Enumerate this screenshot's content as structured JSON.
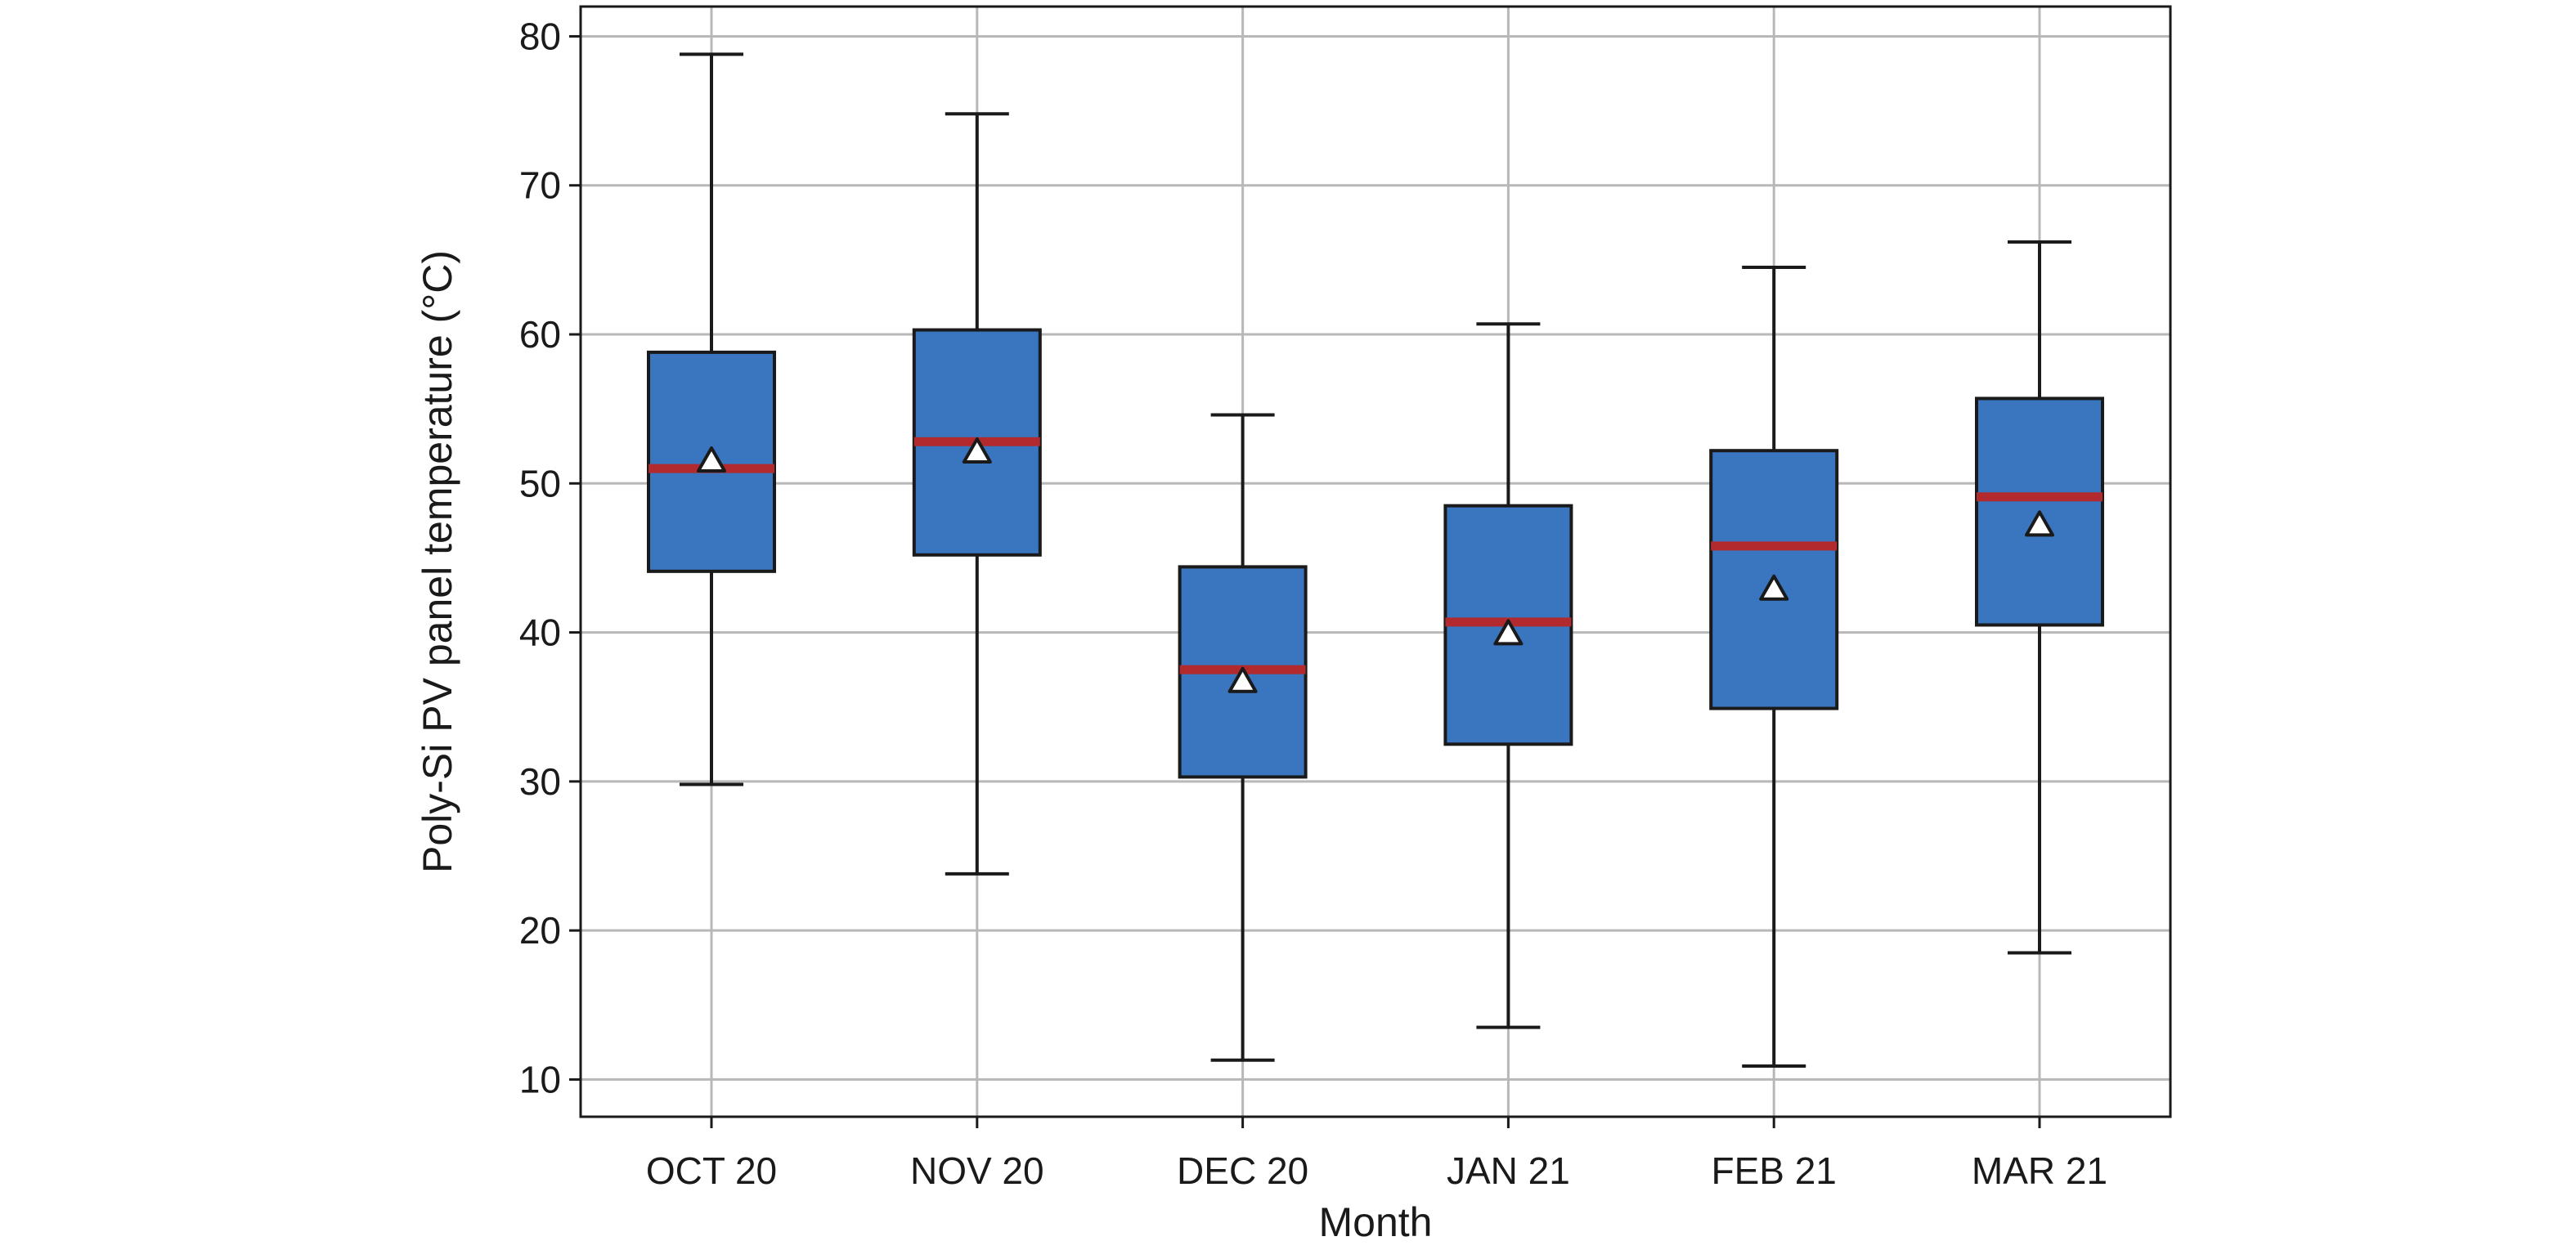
{
  "chart_data": {
    "type": "box",
    "title": "",
    "xlabel": "Month",
    "ylabel": "Poly-Si PV panel temperature (°C)",
    "ylim": [
      7.5,
      82
    ],
    "yticks": [
      10,
      20,
      30,
      40,
      50,
      60,
      70,
      80
    ],
    "grid": true,
    "categories": [
      "OCT 20",
      "NOV 20",
      "DEC 20",
      "JAN 21",
      "FEB 21",
      "MAR 21"
    ],
    "boxes": [
      {
        "category": "OCT 20",
        "whisker_low": 29.8,
        "q1": 44.1,
        "median": 51.0,
        "mean": 51.5,
        "q3": 58.8,
        "whisker_high": 78.8
      },
      {
        "category": "NOV 20",
        "whisker_low": 23.8,
        "q1": 45.2,
        "median": 52.8,
        "mean": 52.1,
        "q3": 60.3,
        "whisker_high": 74.8
      },
      {
        "category": "DEC 20",
        "whisker_low": 11.3,
        "q1": 30.3,
        "median": 37.5,
        "mean": 36.7,
        "q3": 44.4,
        "whisker_high": 54.6
      },
      {
        "category": "JAN 21",
        "whisker_low": 13.5,
        "q1": 32.5,
        "median": 40.7,
        "mean": 39.9,
        "q3": 48.5,
        "whisker_high": 60.7
      },
      {
        "category": "FEB 21",
        "whisker_low": 10.9,
        "q1": 34.9,
        "median": 45.8,
        "mean": 42.9,
        "q3": 52.2,
        "whisker_high": 64.5
      },
      {
        "category": "MAR 21",
        "whisker_low": 18.5,
        "q1": 40.5,
        "median": 49.1,
        "mean": 47.2,
        "q3": 55.7,
        "whisker_high": 66.2
      }
    ],
    "colors": {
      "box_fill": "#3a75bf",
      "box_edge": "#1a1a1a",
      "median": "#b22a2e",
      "mean_marker": "#ffffff",
      "grid": "#b8b8b8"
    }
  }
}
